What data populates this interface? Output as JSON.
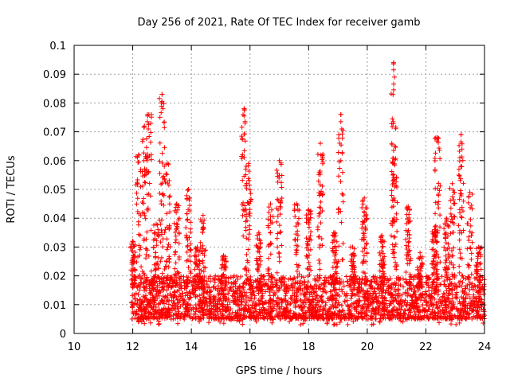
{
  "chart_data": {
    "type": "scatter",
    "title": "Day 256 of 2021, Rate Of TEC Index for receiver gamb",
    "xlabel": "GPS time / hours",
    "ylabel": "ROTI / TECUs",
    "xlim": [
      10,
      24
    ],
    "ylim": [
      0,
      0.1
    ],
    "xticks": [
      10,
      12,
      14,
      16,
      18,
      20,
      22,
      24
    ],
    "xtick_labels": [
      "10",
      "12",
      "14",
      "16",
      "18",
      "20",
      "22",
      "24"
    ],
    "yticks": [
      0,
      0.01,
      0.02,
      0.03,
      0.04,
      0.05,
      0.06,
      0.07,
      0.08,
      0.09,
      0.1
    ],
    "ytick_labels": [
      "0",
      "0.01",
      "0.02",
      "0.03",
      "0.04",
      "0.05",
      "0.06",
      "0.07",
      "0.08",
      "0.09",
      "0.1"
    ],
    "grid": true,
    "marker": "+",
    "color": "#ff0000",
    "x_range_of_data": [
      11.95,
      24.0
    ],
    "dense_band": [
      0.005,
      0.02
    ],
    "notable_peaks": [
      {
        "x": 12.5,
        "y": 0.076
      },
      {
        "x": 13.0,
        "y": 0.083
      },
      {
        "x": 15.8,
        "y": 0.078
      },
      {
        "x": 19.1,
        "y": 0.076
      },
      {
        "x": 20.9,
        "y": 0.094
      },
      {
        "x": 23.2,
        "y": 0.069
      }
    ]
  }
}
